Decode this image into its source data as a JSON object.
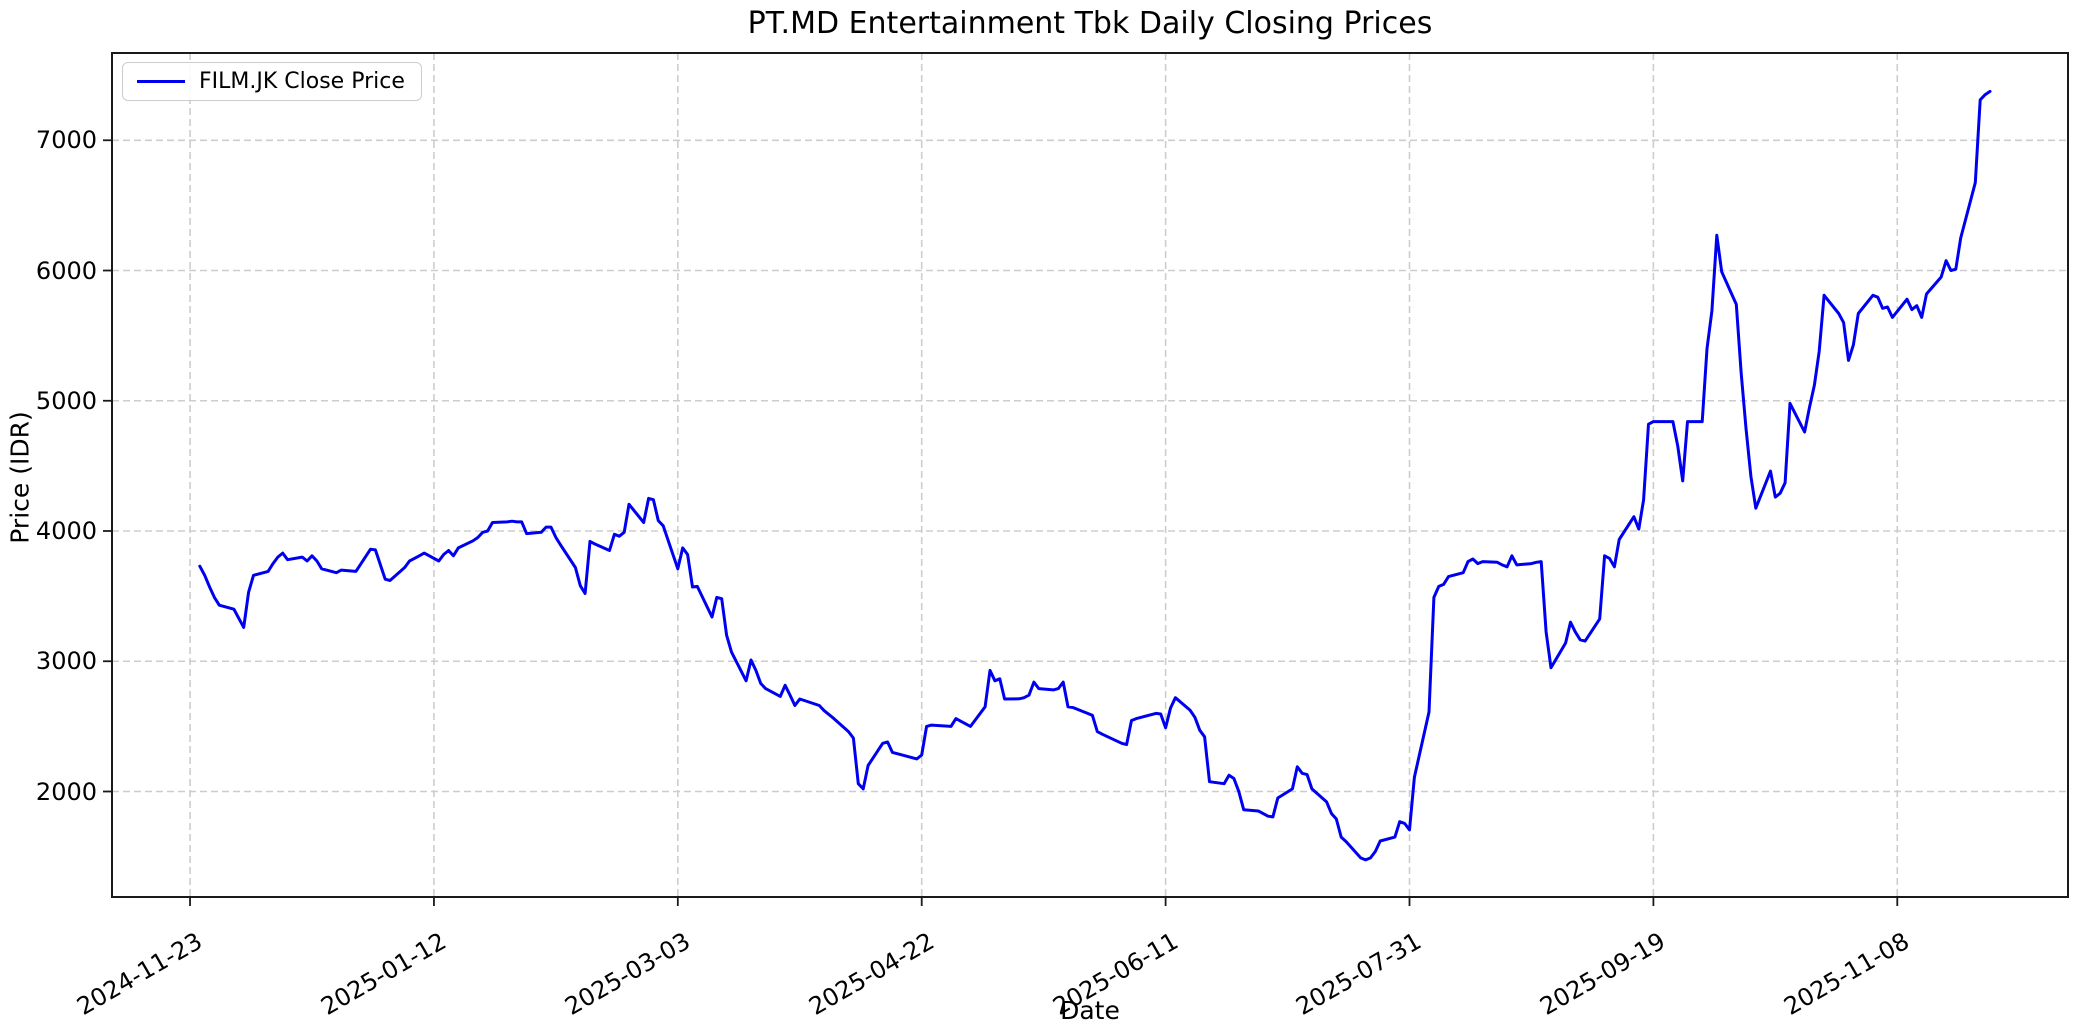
{
  "legend": {
    "label": "FILM.JK Close Price"
  },
  "colors": {
    "line": "#0000f0",
    "grid": "#cdcdcd",
    "spine": "#1a1a1a",
    "background": "#ffffff",
    "text": "#000000"
  },
  "chart_data": {
    "type": "line",
    "title": "PT.MD Entertainment Tbk Daily Closing Prices",
    "xlabel": "Date",
    "ylabel": "Price (IDR)",
    "grid": true,
    "legend_position": "upper left",
    "x_ticks": [
      "2024-11-23",
      "2025-01-12",
      "2025-03-03",
      "2025-04-22",
      "2025-06-11",
      "2025-07-31",
      "2025-09-19",
      "2025-11-08"
    ],
    "y_ticks": [
      2000,
      3000,
      4000,
      5000,
      6000,
      7000
    ],
    "xlim": [
      "2024-11-07",
      "2025-12-13"
    ],
    "ylim": [
      1190,
      7670
    ],
    "series": [
      {
        "name": "FILM.JK Close Price",
        "color": "#0000f0",
        "dates": [
          "2024-11-25",
          "2024-11-26",
          "2024-11-27",
          "2024-11-28",
          "2024-11-29",
          "2024-12-02",
          "2024-12-03",
          "2024-12-04",
          "2024-12-05",
          "2024-12-06",
          "2024-12-09",
          "2024-12-10",
          "2024-12-11",
          "2024-12-12",
          "2024-12-13",
          "2024-12-16",
          "2024-12-17",
          "2024-12-18",
          "2024-12-19",
          "2024-12-20",
          "2024-12-23",
          "2024-12-24",
          "2024-12-27",
          "2024-12-30",
          "2024-12-31",
          "2025-01-02",
          "2025-01-03",
          "2025-01-06",
          "2025-01-07",
          "2025-01-08",
          "2025-01-09",
          "2025-01-10",
          "2025-01-13",
          "2025-01-14",
          "2025-01-15",
          "2025-01-16",
          "2025-01-17",
          "2025-01-20",
          "2025-01-21",
          "2025-01-22",
          "2025-01-23",
          "2025-01-24",
          "2025-01-27",
          "2025-01-28",
          "2025-01-29",
          "2025-01-30",
          "2025-01-31",
          "2025-02-03",
          "2025-02-04",
          "2025-02-05",
          "2025-02-06",
          "2025-02-07",
          "2025-02-10",
          "2025-02-11",
          "2025-02-12",
          "2025-02-13",
          "2025-02-14",
          "2025-02-17",
          "2025-02-18",
          "2025-02-19",
          "2025-02-20",
          "2025-02-21",
          "2025-02-24",
          "2025-02-25",
          "2025-02-26",
          "2025-02-27",
          "2025-02-28",
          "2025-03-03",
          "2025-03-04",
          "2025-03-05",
          "2025-03-06",
          "2025-03-07",
          "2025-03-10",
          "2025-03-11",
          "2025-03-12",
          "2025-03-13",
          "2025-03-14",
          "2025-03-17",
          "2025-03-18",
          "2025-03-19",
          "2025-03-20",
          "2025-03-21",
          "2025-03-24",
          "2025-03-25",
          "2025-03-26",
          "2025-03-27",
          "2025-03-28",
          "2025-04-01",
          "2025-04-02",
          "2025-04-04",
          "2025-04-07",
          "2025-04-08",
          "2025-04-09",
          "2025-04-10",
          "2025-04-11",
          "2025-04-14",
          "2025-04-15",
          "2025-04-16",
          "2025-04-17",
          "2025-04-21",
          "2025-04-22",
          "2025-04-23",
          "2025-04-24",
          "2025-04-28",
          "2025-04-29",
          "2025-04-30",
          "2025-05-02",
          "2025-05-05",
          "2025-05-06",
          "2025-05-07",
          "2025-05-08",
          "2025-05-09",
          "2025-05-12",
          "2025-05-13",
          "2025-05-14",
          "2025-05-15",
          "2025-05-16",
          "2025-05-19",
          "2025-05-20",
          "2025-05-21",
          "2025-05-22",
          "2025-05-23",
          "2025-05-26",
          "2025-05-27",
          "2025-05-28",
          "2025-05-29",
          "2025-06-02",
          "2025-06-03",
          "2025-06-04",
          "2025-06-05",
          "2025-06-06",
          "2025-06-09",
          "2025-06-10",
          "2025-06-11",
          "2025-06-12",
          "2025-06-13",
          "2025-06-16",
          "2025-06-17",
          "2025-06-18",
          "2025-06-19",
          "2025-06-20",
          "2025-06-23",
          "2025-06-24",
          "2025-06-25",
          "2025-06-26",
          "2025-06-27",
          "2025-06-30",
          "2025-07-01",
          "2025-07-02",
          "2025-07-03",
          "2025-07-04",
          "2025-07-07",
          "2025-07-08",
          "2025-07-09",
          "2025-07-10",
          "2025-07-11",
          "2025-07-14",
          "2025-07-15",
          "2025-07-16",
          "2025-07-17",
          "2025-07-18",
          "2025-07-21",
          "2025-07-22",
          "2025-07-23",
          "2025-07-24",
          "2025-07-25",
          "2025-07-28",
          "2025-07-29",
          "2025-07-30",
          "2025-07-31",
          "2025-08-01",
          "2025-08-04",
          "2025-08-05",
          "2025-08-06",
          "2025-08-07",
          "2025-08-08",
          "2025-08-11",
          "2025-08-12",
          "2025-08-13",
          "2025-08-14",
          "2025-08-15",
          "2025-08-18",
          "2025-08-19",
          "2025-08-20",
          "2025-08-21",
          "2025-08-22",
          "2025-08-25",
          "2025-08-26",
          "2025-08-27",
          "2025-08-28",
          "2025-08-29",
          "2025-09-01",
          "2025-09-02",
          "2025-09-03",
          "2025-09-04",
          "2025-09-05",
          "2025-09-08",
          "2025-09-09",
          "2025-09-10",
          "2025-09-11",
          "2025-09-12",
          "2025-09-15",
          "2025-09-16",
          "2025-09-17",
          "2025-09-18",
          "2025-09-19",
          "2025-09-22",
          "2025-09-23",
          "2025-09-24",
          "2025-09-25",
          "2025-09-26",
          "2025-09-29",
          "2025-09-30",
          "2025-10-01",
          "2025-10-02",
          "2025-10-03",
          "2025-10-06",
          "2025-10-07",
          "2025-10-08",
          "2025-10-09",
          "2025-10-10",
          "2025-10-13",
          "2025-10-14",
          "2025-10-15",
          "2025-10-16",
          "2025-10-17",
          "2025-10-20",
          "2025-10-21",
          "2025-10-22",
          "2025-10-23",
          "2025-10-24",
          "2025-10-27",
          "2025-10-28",
          "2025-10-29",
          "2025-10-30",
          "2025-10-31",
          "2025-11-03",
          "2025-11-04",
          "2025-11-05",
          "2025-11-06",
          "2025-11-07",
          "2025-11-10",
          "2025-11-11",
          "2025-11-12",
          "2025-11-13",
          "2025-11-14",
          "2025-11-17",
          "2025-11-18",
          "2025-11-19",
          "2025-11-20",
          "2025-11-21",
          "2025-11-24",
          "2025-11-25",
          "2025-11-26",
          "2025-11-27"
        ],
        "values": [
          3730,
          3660,
          3570,
          3490,
          3430,
          3400,
          3330,
          3260,
          3530,
          3660,
          3690,
          3750,
          3800,
          3830,
          3780,
          3800,
          3770,
          3810,
          3770,
          3710,
          3680,
          3700,
          3690,
          3860,
          3855,
          3630,
          3620,
          3720,
          3770,
          3790,
          3810,
          3830,
          3770,
          3820,
          3850,
          3810,
          3870,
          3925,
          3950,
          3990,
          4000,
          4065,
          4070,
          4075,
          4070,
          4070,
          3980,
          3990,
          4030,
          4030,
          3950,
          3890,
          3720,
          3580,
          3520,
          3920,
          3900,
          3850,
          3975,
          3960,
          3990,
          4205,
          4065,
          4250,
          4240,
          4080,
          4040,
          3710,
          3870,
          3820,
          3570,
          3575,
          3340,
          3490,
          3480,
          3200,
          3070,
          2850,
          3010,
          2930,
          2830,
          2790,
          2730,
          2815,
          2740,
          2660,
          2710,
          2660,
          2620,
          2560,
          2460,
          2410,
          2060,
          2020,
          2200,
          2370,
          2380,
          2300,
          2290,
          2250,
          2280,
          2500,
          2510,
          2500,
          2560,
          2540,
          2500,
          2650,
          2930,
          2850,
          2865,
          2710,
          2712,
          2720,
          2740,
          2840,
          2790,
          2780,
          2790,
          2840,
          2650,
          2645,
          2600,
          2585,
          2460,
          2440,
          2370,
          2360,
          2545,
          2560,
          2570,
          2600,
          2595,
          2490,
          2640,
          2720,
          2625,
          2570,
          2470,
          2420,
          2075,
          2060,
          2125,
          2100,
          2000,
          1860,
          1850,
          1830,
          1810,
          1805,
          1950,
          2020,
          2190,
          2140,
          2130,
          2020,
          1920,
          1830,
          1790,
          1650,
          1615,
          1490,
          1475,
          1490,
          1540,
          1620,
          1650,
          1768,
          1755,
          1705,
          2110,
          2610,
          3490,
          3575,
          3590,
          3650,
          3680,
          3765,
          3785,
          3750,
          3765,
          3760,
          3740,
          3725,
          3810,
          3740,
          3750,
          3760,
          3765,
          3225,
          2950,
          3140,
          3300,
          3225,
          3165,
          3155,
          3325,
          3810,
          3790,
          3725,
          3935,
          4110,
          4015,
          4240,
          4820,
          4840,
          4840,
          4840,
          4650,
          4385,
          4840,
          4840,
          5400,
          5690,
          6270,
          5990,
          5740,
          5210,
          4780,
          4420,
          4175,
          4460,
          4260,
          4290,
          4370,
          4980,
          4760,
          4950,
          5120,
          5380,
          5810,
          5670,
          5600,
          5310,
          5430,
          5670,
          5810,
          5795,
          5710,
          5720,
          5640,
          5780,
          5700,
          5730,
          5640,
          5820,
          5950,
          6075,
          6000,
          6010,
          6250,
          6675,
          7310,
          7350,
          7375
        ]
      }
    ]
  }
}
